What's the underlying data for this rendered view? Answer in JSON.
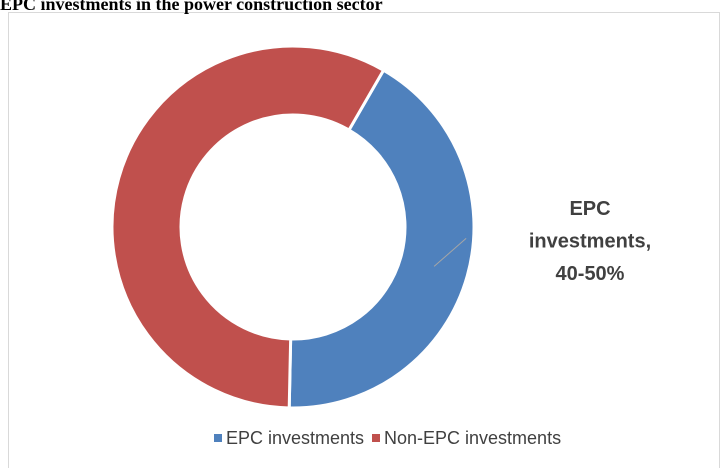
{
  "chart_data": {
    "type": "donut",
    "title": "EPC investments in the power construction sector",
    "categories": [
      "EPC investments",
      "Non-EPC investments"
    ],
    "values": [
      42,
      58
    ],
    "value_labels": [
      "EPC investments, 40-50%",
      null
    ],
    "colors": [
      "#4f81bd",
      "#c0504d"
    ],
    "start_angle": 30,
    "legend": "bottom"
  }
}
